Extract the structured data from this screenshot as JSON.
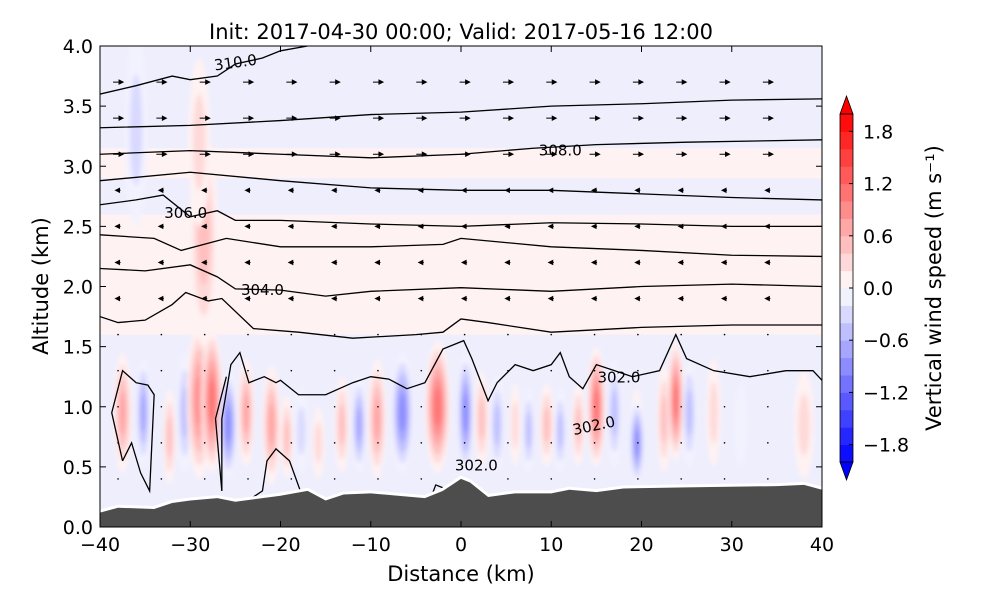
{
  "chart_data": {
    "type": "heatmap",
    "title": "Init: 2017-04-30 00:00; Valid: 2017-05-16 12:00",
    "xlabel": "Distance (km)",
    "ylabel": "Altitude (km)",
    "xlim": [
      -40,
      40
    ],
    "ylim": [
      0,
      4
    ],
    "xticks": [
      "−40",
      "−30",
      "−20",
      "−10",
      "0",
      "10",
      "20",
      "30",
      "40"
    ],
    "xtick_values": [
      -40,
      -30,
      -20,
      -10,
      0,
      10,
      20,
      30,
      40
    ],
    "yticks": [
      "0.0",
      "0.5",
      "1.0",
      "1.5",
      "2.0",
      "2.5",
      "3.0",
      "3.5",
      "4.0"
    ],
    "ytick_values": [
      0,
      0.5,
      1,
      1.5,
      2,
      2.5,
      3,
      3.5,
      4
    ],
    "colorbar": {
      "label": "Vertical wind speed (m s⁻¹)",
      "range": [
        -2,
        2
      ],
      "step": 0.2,
      "extend": "both",
      "ticks": [
        "−1.8",
        "−1.2",
        "−0.6",
        "0.0",
        "0.6",
        "1.2",
        "1.8"
      ],
      "tick_values": [
        -1.8,
        -1.2,
        -0.6,
        0,
        0.6,
        1.2,
        1.8
      ],
      "low_color": "#0000ff",
      "high_color": "#ff0000"
    },
    "terrain_color": "#4d4d4d",
    "terrain": [
      [
        -40,
        0.12
      ],
      [
        -38,
        0.16
      ],
      [
        -34,
        0.15
      ],
      [
        -32,
        0.2
      ],
      [
        -30,
        0.22
      ],
      [
        -27,
        0.24
      ],
      [
        -25,
        0.21
      ],
      [
        -22,
        0.24
      ],
      [
        -20,
        0.26
      ],
      [
        -17,
        0.3
      ],
      [
        -15,
        0.22
      ],
      [
        -13,
        0.27
      ],
      [
        -10,
        0.28
      ],
      [
        -7,
        0.26
      ],
      [
        -4,
        0.24
      ],
      [
        -2,
        0.3
      ],
      [
        0,
        0.4
      ],
      [
        1,
        0.37
      ],
      [
        3,
        0.25
      ],
      [
        6,
        0.28
      ],
      [
        10,
        0.28
      ],
      [
        12,
        0.31
      ],
      [
        15,
        0.29
      ],
      [
        18,
        0.32
      ],
      [
        25,
        0.33
      ],
      [
        35,
        0.34
      ],
      [
        38,
        0.35
      ],
      [
        40,
        0.31
      ]
    ],
    "w_features": [
      [
        -37.5,
        0.95,
        1.0,
        0.5,
        0.8
      ],
      [
        -35.2,
        0.95,
        0.8,
        0.45,
        -0.8
      ],
      [
        -32.3,
        0.75,
        0.7,
        0.4,
        0.6
      ],
      [
        -30.6,
        0.95,
        0.9,
        0.5,
        -0.5
      ],
      [
        -29,
        1.05,
        1.4,
        0.65,
        1.0
      ],
      [
        -27.6,
        1.05,
        1.2,
        0.6,
        1.2
      ],
      [
        -28.5,
        2.4,
        1.6,
        0.9,
        0.6
      ],
      [
        -29,
        3.2,
        1.2,
        0.7,
        0.4
      ],
      [
        -36,
        3.3,
        1.2,
        0.8,
        -0.4
      ],
      [
        -25.8,
        0.85,
        1.0,
        0.45,
        -1.0
      ],
      [
        -23.8,
        0.95,
        0.9,
        0.45,
        0.8
      ],
      [
        -21,
        0.85,
        1.0,
        0.5,
        0.8
      ],
      [
        -19.3,
        0.75,
        0.7,
        0.35,
        0.5
      ],
      [
        -17.7,
        0.8,
        0.8,
        0.35,
        -0.4
      ],
      [
        -15.8,
        0.7,
        0.7,
        0.3,
        0.4
      ],
      [
        -13.2,
        0.85,
        0.8,
        0.4,
        0.7
      ],
      [
        -11.3,
        0.85,
        0.8,
        0.4,
        -0.8
      ],
      [
        -9.3,
        0.9,
        1.0,
        0.5,
        0.8
      ],
      [
        -6.5,
        0.95,
        1.2,
        0.5,
        -1.0
      ],
      [
        -2.6,
        1.0,
        1.4,
        0.55,
        1.2
      ],
      [
        0.5,
        0.95,
        0.9,
        0.5,
        -1.0
      ],
      [
        2.3,
        0.9,
        0.8,
        0.4,
        0.6
      ],
      [
        4,
        0.85,
        0.8,
        0.4,
        -0.6
      ],
      [
        6,
        0.85,
        0.6,
        0.35,
        0.4
      ],
      [
        7.5,
        0.8,
        0.7,
        0.35,
        -0.5
      ],
      [
        9.5,
        0.85,
        0.8,
        0.35,
        0.6
      ],
      [
        11,
        0.8,
        0.7,
        0.35,
        -0.5
      ],
      [
        13,
        0.85,
        0.7,
        0.35,
        0.5
      ],
      [
        15,
        1.0,
        1.0,
        0.5,
        1.2
      ],
      [
        17,
        0.95,
        0.8,
        0.45,
        -0.6
      ],
      [
        19.5,
        0.8,
        0.7,
        0.35,
        0.4
      ],
      [
        19.5,
        0.7,
        0.8,
        0.35,
        -1.0
      ],
      [
        22.5,
        0.9,
        0.8,
        0.45,
        0.6
      ],
      [
        23.8,
        1.05,
        0.9,
        0.5,
        1.2
      ],
      [
        25.3,
        0.95,
        0.8,
        0.45,
        -0.6
      ],
      [
        28,
        0.95,
        0.8,
        0.45,
        0.4
      ],
      [
        31,
        0.85,
        0.7,
        0.35,
        -0.3
      ],
      [
        38,
        0.85,
        1.1,
        0.45,
        0.4
      ]
    ],
    "contours": [
      {
        "level": 302,
        "points": [
          [
            -26.5,
            0.3
          ],
          [
            -26.5,
            0.9
          ],
          [
            -25.5,
            1.35
          ],
          [
            -24.5,
            1.45
          ],
          [
            -23.5,
            1.2
          ],
          [
            -21.8,
            1.25
          ],
          [
            -20.5,
            1.2
          ],
          [
            -20,
            1.22
          ],
          [
            -18,
            1.1
          ],
          [
            -15,
            1.1
          ],
          [
            -12,
            1.2
          ],
          [
            -10,
            1.25
          ],
          [
            -8,
            1.23
          ],
          [
            -6,
            1.15
          ],
          [
            -4,
            1.2
          ],
          [
            -2,
            1.48
          ],
          [
            0.3,
            1.55
          ],
          [
            1.2,
            1.4
          ],
          [
            3,
            1.05
          ],
          [
            4,
            1.2
          ],
          [
            6,
            1.35
          ],
          [
            8,
            1.3
          ],
          [
            10,
            1.35
          ],
          [
            11,
            1.45
          ],
          [
            12,
            1.25
          ],
          [
            13.5,
            1.15
          ],
          [
            15,
            1.35
          ],
          [
            17,
            1.3
          ],
          [
            19,
            1.25
          ],
          [
            22,
            1.3
          ],
          [
            23.8,
            1.6
          ],
          [
            25,
            1.4
          ],
          [
            28,
            1.3
          ],
          [
            32,
            1.25
          ],
          [
            36,
            1.3
          ],
          [
            39,
            1.3
          ],
          [
            40,
            1.22
          ]
        ]
      },
      {
        "level": 302,
        "points": [
          [
            -37.5,
            0.55
          ],
          [
            -38.7,
            0.95
          ],
          [
            -37.5,
            1.3
          ],
          [
            -36,
            1.2
          ],
          [
            -34.7,
            1.18
          ],
          [
            -34,
            1.1
          ],
          [
            -34.5,
            0.3
          ],
          [
            -35.5,
            0.45
          ],
          [
            -36.5,
            0.7
          ],
          [
            -37.5,
            0.55
          ]
        ]
      },
      {
        "level": 302,
        "points": [
          [
            -26.5,
            0.3
          ],
          [
            -27.2,
            0.9
          ],
          [
            -26,
            1.25
          ]
        ]
      },
      {
        "level": 302,
        "points": [
          [
            -23,
            0.25
          ],
          [
            -22,
            0.3
          ],
          [
            -21.5,
            0.55
          ],
          [
            -20.5,
            0.65
          ],
          [
            -19,
            0.55
          ],
          [
            -17.8,
            0.3
          ]
        ]
      },
      {
        "level": 302,
        "points": [
          [
            -3.3,
            0.25
          ],
          [
            -2.8,
            0.35
          ],
          [
            -1.8,
            0.32
          ]
        ]
      },
      {
        "level": 303,
        "points": [
          [
            -40,
            1.75
          ],
          [
            -38,
            1.7
          ],
          [
            -35,
            1.72
          ],
          [
            -32,
            1.85
          ],
          [
            -30.5,
            1.95
          ],
          [
            -28,
            1.88
          ],
          [
            -26.5,
            1.9
          ],
          [
            -23,
            1.65
          ],
          [
            -18,
            1.62
          ],
          [
            -12,
            1.57
          ],
          [
            -5,
            1.6
          ],
          [
            -2,
            1.62
          ],
          [
            0,
            1.73
          ],
          [
            3,
            1.7
          ],
          [
            10,
            1.62
          ],
          [
            20,
            1.66
          ],
          [
            30,
            1.68
          ],
          [
            40,
            1.68
          ]
        ]
      },
      {
        "level": 304,
        "points": [
          [
            -40,
            2.15
          ],
          [
            -35,
            2.13
          ],
          [
            -30,
            2.18
          ],
          [
            -27,
            2.08
          ],
          [
            -25,
            1.98
          ],
          [
            -20,
            1.97
          ],
          [
            -15,
            1.92
          ],
          [
            -10,
            1.96
          ],
          [
            0,
            1.99
          ],
          [
            10,
            1.96
          ],
          [
            20,
            2.0
          ],
          [
            30,
            2.02
          ],
          [
            40,
            2.0
          ]
        ]
      },
      {
        "level": 305,
        "points": [
          [
            -40,
            2.43
          ],
          [
            -34,
            2.4
          ],
          [
            -31,
            2.3
          ],
          [
            -26,
            2.4
          ],
          [
            -20,
            2.33
          ],
          [
            -10,
            2.33
          ],
          [
            -2,
            2.35
          ],
          [
            0,
            2.4
          ],
          [
            10,
            2.33
          ],
          [
            20,
            2.3
          ],
          [
            30,
            2.26
          ],
          [
            40,
            2.25
          ]
        ]
      },
      {
        "level": 306,
        "points": [
          [
            -40,
            2.68
          ],
          [
            -36,
            2.72
          ],
          [
            -33,
            2.76
          ],
          [
            -30,
            2.58
          ],
          [
            -27,
            2.63
          ],
          [
            -25,
            2.55
          ],
          [
            -20,
            2.55
          ],
          [
            -10,
            2.52
          ],
          [
            0,
            2.5
          ],
          [
            10,
            2.53
          ],
          [
            20,
            2.52
          ],
          [
            30,
            2.5
          ],
          [
            40,
            2.5
          ]
        ]
      },
      {
        "level": 307,
        "points": [
          [
            -40,
            2.88
          ],
          [
            -30,
            2.95
          ],
          [
            -20,
            2.88
          ],
          [
            -10,
            2.82
          ],
          [
            0,
            2.8
          ],
          [
            10,
            2.8
          ],
          [
            20,
            2.77
          ],
          [
            30,
            2.74
          ],
          [
            40,
            2.72
          ]
        ]
      },
      {
        "level": 308,
        "points": [
          [
            -40,
            3.1
          ],
          [
            -30,
            3.13
          ],
          [
            -20,
            3.1
          ],
          [
            -10,
            3.07
          ],
          [
            0,
            3.1
          ],
          [
            8,
            3.15
          ],
          [
            15,
            3.18
          ],
          [
            25,
            3.2
          ],
          [
            40,
            3.22
          ]
        ]
      },
      {
        "level": 309,
        "points": [
          [
            -40,
            3.32
          ],
          [
            -30,
            3.34
          ],
          [
            -20,
            3.38
          ],
          [
            -10,
            3.43
          ],
          [
            0,
            3.45
          ],
          [
            10,
            3.5
          ],
          [
            20,
            3.52
          ],
          [
            30,
            3.55
          ],
          [
            40,
            3.56
          ]
        ]
      },
      {
        "level": 310,
        "points": [
          [
            -40,
            3.6
          ],
          [
            -36,
            3.67
          ],
          [
            -32,
            3.75
          ],
          [
            -30,
            3.72
          ],
          [
            -27,
            3.75
          ],
          [
            -25,
            3.85
          ],
          [
            -22,
            3.9
          ],
          [
            -20,
            3.96
          ],
          [
            -17,
            4.0
          ]
        ]
      }
    ],
    "contour_labels": [
      {
        "text": "310.0",
        "x": -25,
        "y": 3.87,
        "angle": -8
      },
      {
        "text": "308.0",
        "x": 11,
        "y": 3.14,
        "angle": 0
      },
      {
        "text": "306.0",
        "x": -30.5,
        "y": 2.62,
        "angle": 0
      },
      {
        "text": "304.0",
        "x": -22,
        "y": 1.98,
        "angle": 0
      },
      {
        "text": "302.0",
        "x": 17.5,
        "y": 1.25,
        "angle": 0
      },
      {
        "text": "302.0",
        "x": 14.7,
        "y": 0.85,
        "angle": -12
      },
      {
        "text": "302.0",
        "x": 1.7,
        "y": 0.52,
        "angle": 0
      }
    ]
  }
}
